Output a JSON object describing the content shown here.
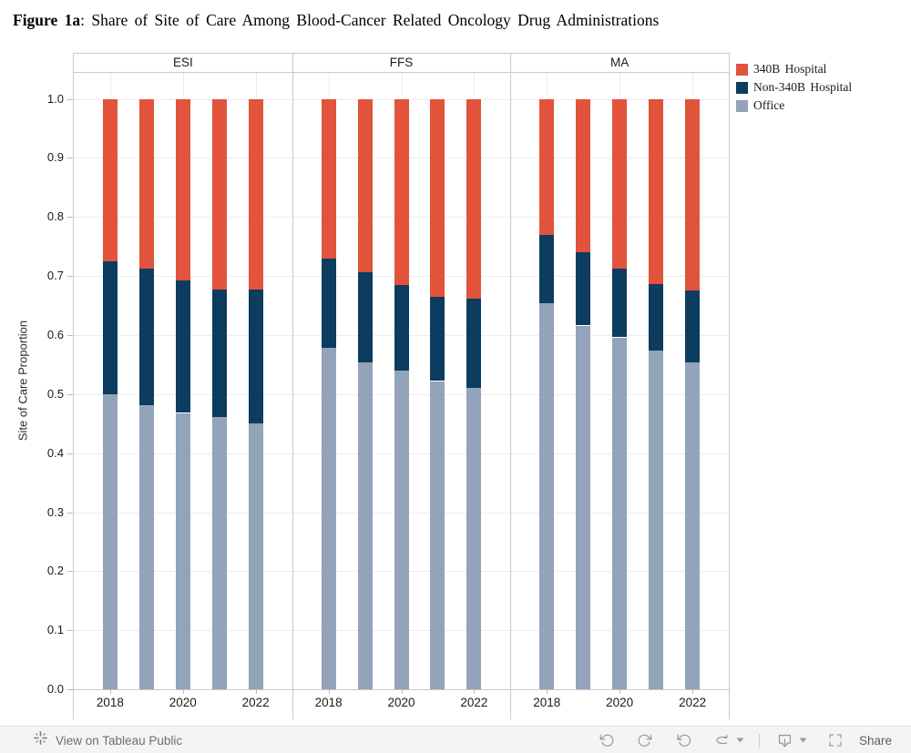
{
  "title": {
    "figure_label": "Figure 1a",
    "text": ": Share of Site of Care Among Blood-Cancer Related Oncology Drug Administrations"
  },
  "chart_data": {
    "type": "bar",
    "stacked": true,
    "title": "Figure 1a: Share of Site of Care Among Blood-Cancer Related Oncology Drug Administrations",
    "xlabel": "",
    "ylabel": "Site of Care Proportion",
    "ylim": [
      0.0,
      1.0
    ],
    "ytick_labels": [
      "0.0",
      "0.1",
      "0.2",
      "0.3",
      "0.4",
      "0.5",
      "0.6",
      "0.7",
      "0.8",
      "0.9",
      "1.0"
    ],
    "grid": true,
    "legend_position": "top-right",
    "categories": [
      "2018",
      "2019",
      "2020",
      "2021",
      "2022"
    ],
    "xtick_shown_indices": [
      0,
      2,
      4
    ],
    "legend_entries": [
      "340B Hospital",
      "Non-340B Hospital",
      "Office"
    ],
    "stack_order_bottom_to_top": [
      "Office",
      "Non-340B Hospital",
      "340B Hospital"
    ],
    "series_colors": {
      "340B Hospital": "#e2533c",
      "Non-340B Hospital": "#0c3c5f",
      "Office": "#92a3ba"
    },
    "panels": [
      {
        "label": "ESI",
        "series": [
          {
            "name": "Office",
            "values": [
              0.5,
              0.481,
              0.468,
              0.461,
              0.451
            ]
          },
          {
            "name": "Non-340B Hospital",
            "values": [
              0.225,
              0.231,
              0.224,
              0.216,
              0.226
            ]
          },
          {
            "name": "340B Hospital",
            "values": [
              0.275,
              0.288,
              0.308,
              0.323,
              0.323
            ]
          }
        ]
      },
      {
        "label": "FFS",
        "series": [
          {
            "name": "Office",
            "values": [
              0.578,
              0.554,
              0.54,
              0.522,
              0.511
            ]
          },
          {
            "name": "Non-340B Hospital",
            "values": [
              0.151,
              0.153,
              0.145,
              0.142,
              0.151
            ]
          },
          {
            "name": "340B Hospital",
            "values": [
              0.271,
              0.293,
              0.315,
              0.336,
              0.338
            ]
          }
        ]
      },
      {
        "label": "MA",
        "series": [
          {
            "name": "Office",
            "values": [
              0.654,
              0.616,
              0.596,
              0.573,
              0.553
            ]
          },
          {
            "name": "Non-340B Hospital",
            "values": [
              0.116,
              0.124,
              0.116,
              0.113,
              0.123
            ]
          },
          {
            "name": "340B Hospital",
            "values": [
              0.23,
              0.26,
              0.288,
              0.314,
              0.324
            ]
          }
        ]
      }
    ]
  },
  "footer": {
    "view_link": "View on Tableau Public",
    "share_label": "Share",
    "icons": [
      "tableau-logo",
      "undo",
      "redo",
      "replay",
      "refresh",
      "dropdown-caret",
      "download",
      "dropdown-caret",
      "fullscreen",
      "share"
    ]
  }
}
